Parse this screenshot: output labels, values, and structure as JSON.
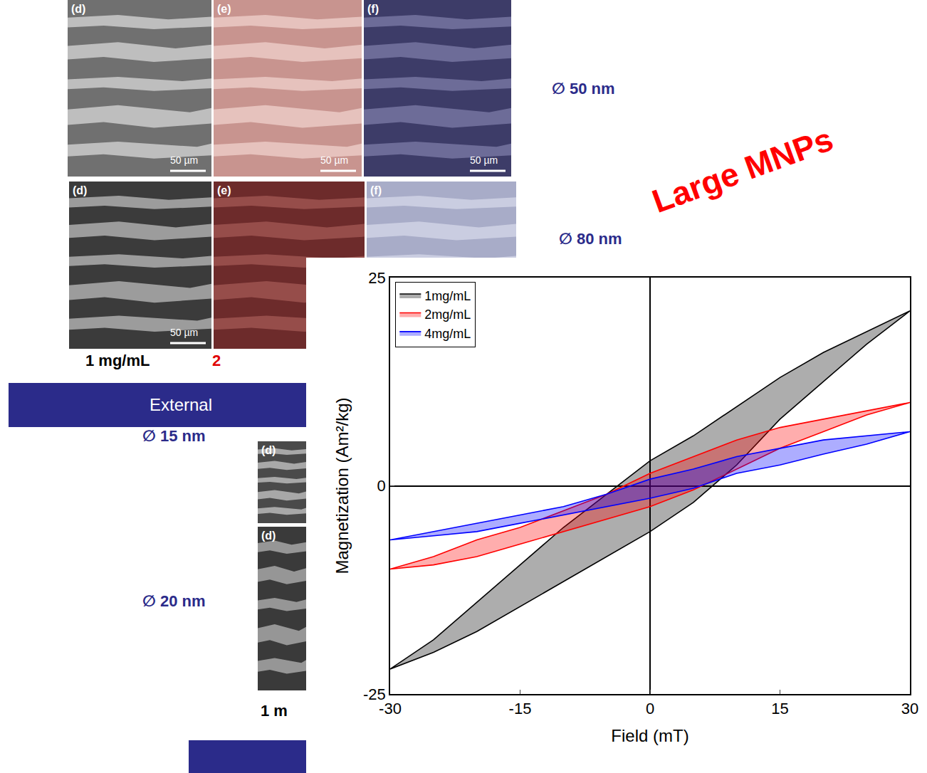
{
  "figures": {
    "rows": [
      {
        "diameter": "∅ 50 nm",
        "panels": [
          {
            "letter": "(d)",
            "scale_bar": "50 µm"
          },
          {
            "letter": "(e)",
            "scale_bar": "50 µm"
          },
          {
            "letter": "(f)",
            "scale_bar": "50 µm"
          }
        ]
      },
      {
        "diameter": "∅ 80 nm",
        "panels": [
          {
            "letter": "(d)",
            "scale_bar": "50 µm"
          },
          {
            "letter": "(e)"
          },
          {
            "letter": "(f)"
          }
        ]
      },
      {
        "diameter": "∅ 15 nm",
        "panels": [
          {
            "letter": "(d)"
          }
        ]
      },
      {
        "diameter": "∅ 20 nm",
        "panels": [
          {
            "letter": "(d)"
          }
        ]
      }
    ],
    "concentration_labels": [
      {
        "text": "1 mg/mL",
        "color": "#000000"
      },
      {
        "text": "2",
        "color": "#e00000"
      }
    ],
    "lower_concentration_label": "1 m",
    "banner": "External",
    "overlay_title": "Large MNPs"
  },
  "chart_data": {
    "type": "line",
    "x_label": "Field (mT)",
    "y_label": "Magnetization (Am²/kg)",
    "xlim": [
      -30,
      30
    ],
    "xticks": [
      -30,
      -15,
      0,
      15,
      30
    ],
    "ylim": [
      -25,
      25
    ],
    "yticks": [
      -25,
      0,
      25
    ],
    "grid": false,
    "legend": "upper left",
    "series": [
      {
        "name": "1mg/mL",
        "color": "#000000",
        "x": [
          30,
          25,
          20,
          15,
          10,
          5,
          0,
          -5,
          -10,
          -15,
          -20,
          -25,
          -30,
          -25,
          -20,
          -15,
          -10,
          -5,
          0,
          5,
          10,
          15,
          20,
          25,
          30
        ],
        "values": [
          21,
          18.5,
          16,
          13,
          9.5,
          6,
          3,
          -1,
          -5,
          -9.5,
          -14,
          -18.5,
          -22,
          -20,
          -17.5,
          -14.5,
          -11.5,
          -8.5,
          -5.5,
          -2,
          2.5,
          8,
          12.5,
          17,
          21
        ]
      },
      {
        "name": "2mg/mL",
        "color": "#ff0000",
        "x": [
          30,
          25,
          20,
          15,
          10,
          5,
          0,
          -5,
          -10,
          -15,
          -20,
          -25,
          -30,
          -25,
          -20,
          -15,
          -10,
          -5,
          0,
          5,
          10,
          15,
          20,
          25,
          30
        ],
        "values": [
          10,
          9,
          8,
          7,
          5.5,
          3.5,
          1.5,
          -1,
          -3,
          -5,
          -6.5,
          -8.5,
          -10,
          -9.5,
          -8.5,
          -7,
          -5.5,
          -4,
          -2.5,
          -0.5,
          2,
          4.5,
          6.5,
          8.5,
          10
        ]
      },
      {
        "name": "4mg/mL",
        "color": "#0000ff",
        "x": [
          30,
          25,
          20,
          15,
          10,
          5,
          0,
          -5,
          -10,
          -15,
          -20,
          -25,
          -30,
          -25,
          -20,
          -15,
          -10,
          -5,
          0,
          5,
          10,
          15,
          20,
          25,
          30
        ],
        "values": [
          6.5,
          6,
          5.5,
          4.5,
          3.5,
          2,
          0.8,
          -1,
          -2.5,
          -3.5,
          -4.5,
          -5.5,
          -6.5,
          -6,
          -5.5,
          -4.5,
          -3.5,
          -2.5,
          -1.5,
          -0.3,
          1.5,
          2.5,
          3.8,
          5,
          6.5
        ]
      }
    ]
  }
}
